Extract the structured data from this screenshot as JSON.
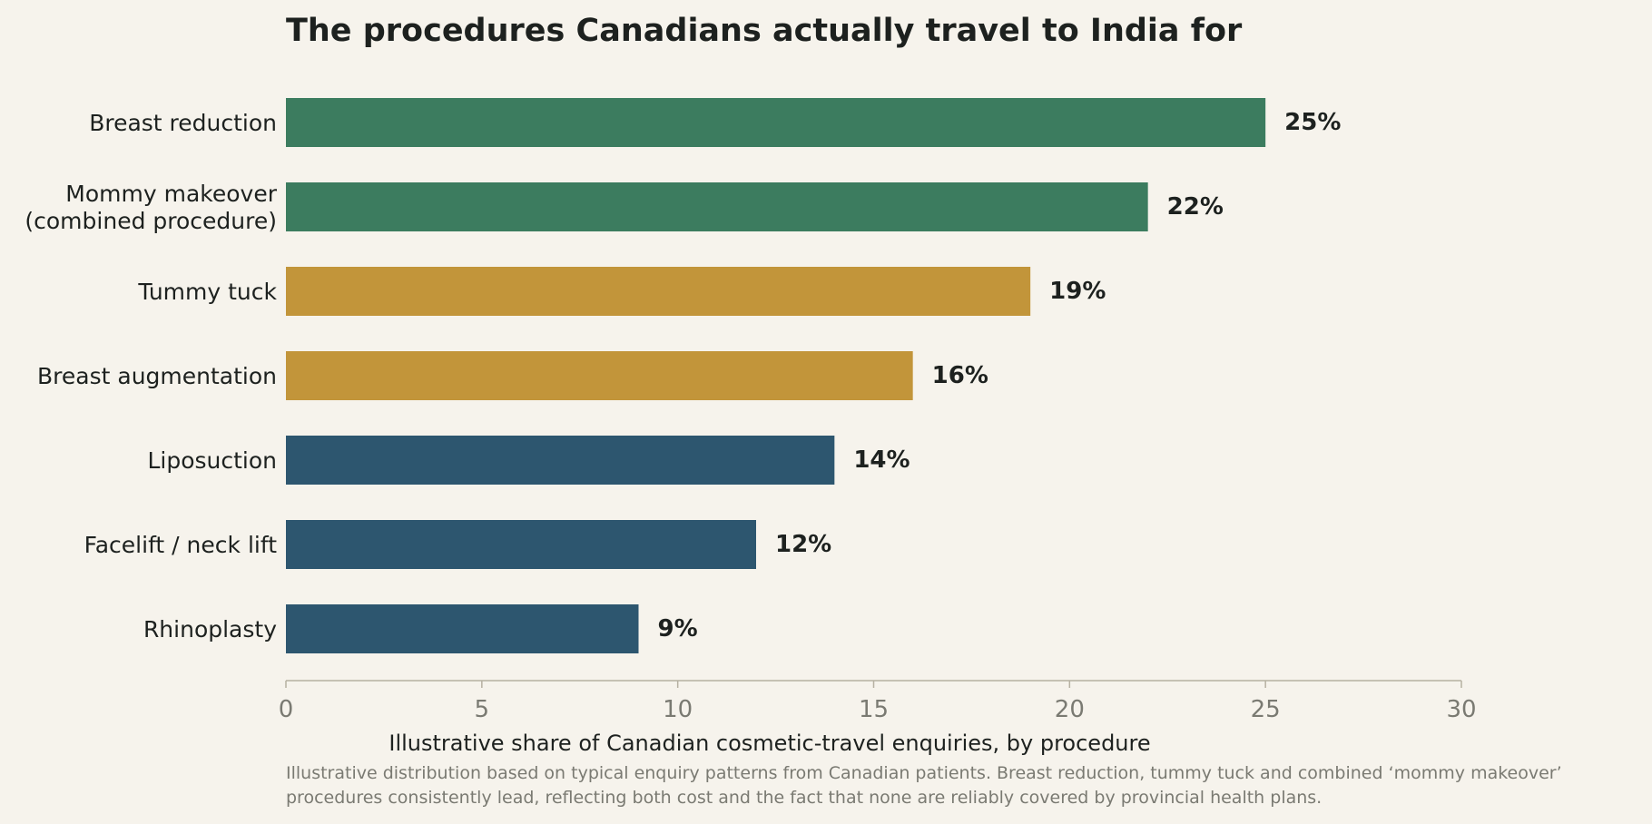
{
  "chart_data": {
    "type": "bar",
    "orientation": "horizontal",
    "title": "The procedures Canadians actually travel to India for",
    "categories": [
      [
        "Breast reduction"
      ],
      [
        "Mommy makeover",
        "(combined procedure)"
      ],
      [
        "Tummy tuck"
      ],
      [
        "Breast augmentation"
      ],
      [
        "Liposuction"
      ],
      [
        "Facelift / neck lift"
      ],
      [
        "Rhinoplasty"
      ]
    ],
    "values": [
      25,
      22,
      19,
      16,
      14,
      12,
      9
    ],
    "value_labels": [
      "25%",
      "22%",
      "19%",
      "16%",
      "14%",
      "12%",
      "9%"
    ],
    "bar_colors": [
      "#3c7c5f",
      "#3c7c5f",
      "#c2953a",
      "#c2953a",
      "#2d566f",
      "#2d566f",
      "#2d566f"
    ],
    "xlim": [
      0,
      30
    ],
    "xticks": [
      0,
      5,
      10,
      15,
      20,
      25,
      30
    ],
    "xlabel": "Illustrative share of Canadian cosmetic-travel enquiries, by procedure",
    "ylabel": "",
    "grid": false,
    "note": [
      "Illustrative distribution based on typical enquiry patterns from Canadian patients. Breast reduction, tummy tuck and combined ‘mommy makeover’",
      "procedures consistently lead, reflecting both cost and the fact that none are reliably covered by provincial health plans."
    ]
  },
  "colors": {
    "background": "#f6f3ec",
    "text": "#1d211f",
    "muted": "#7a7a72",
    "axis": "#b6b1a2"
  }
}
